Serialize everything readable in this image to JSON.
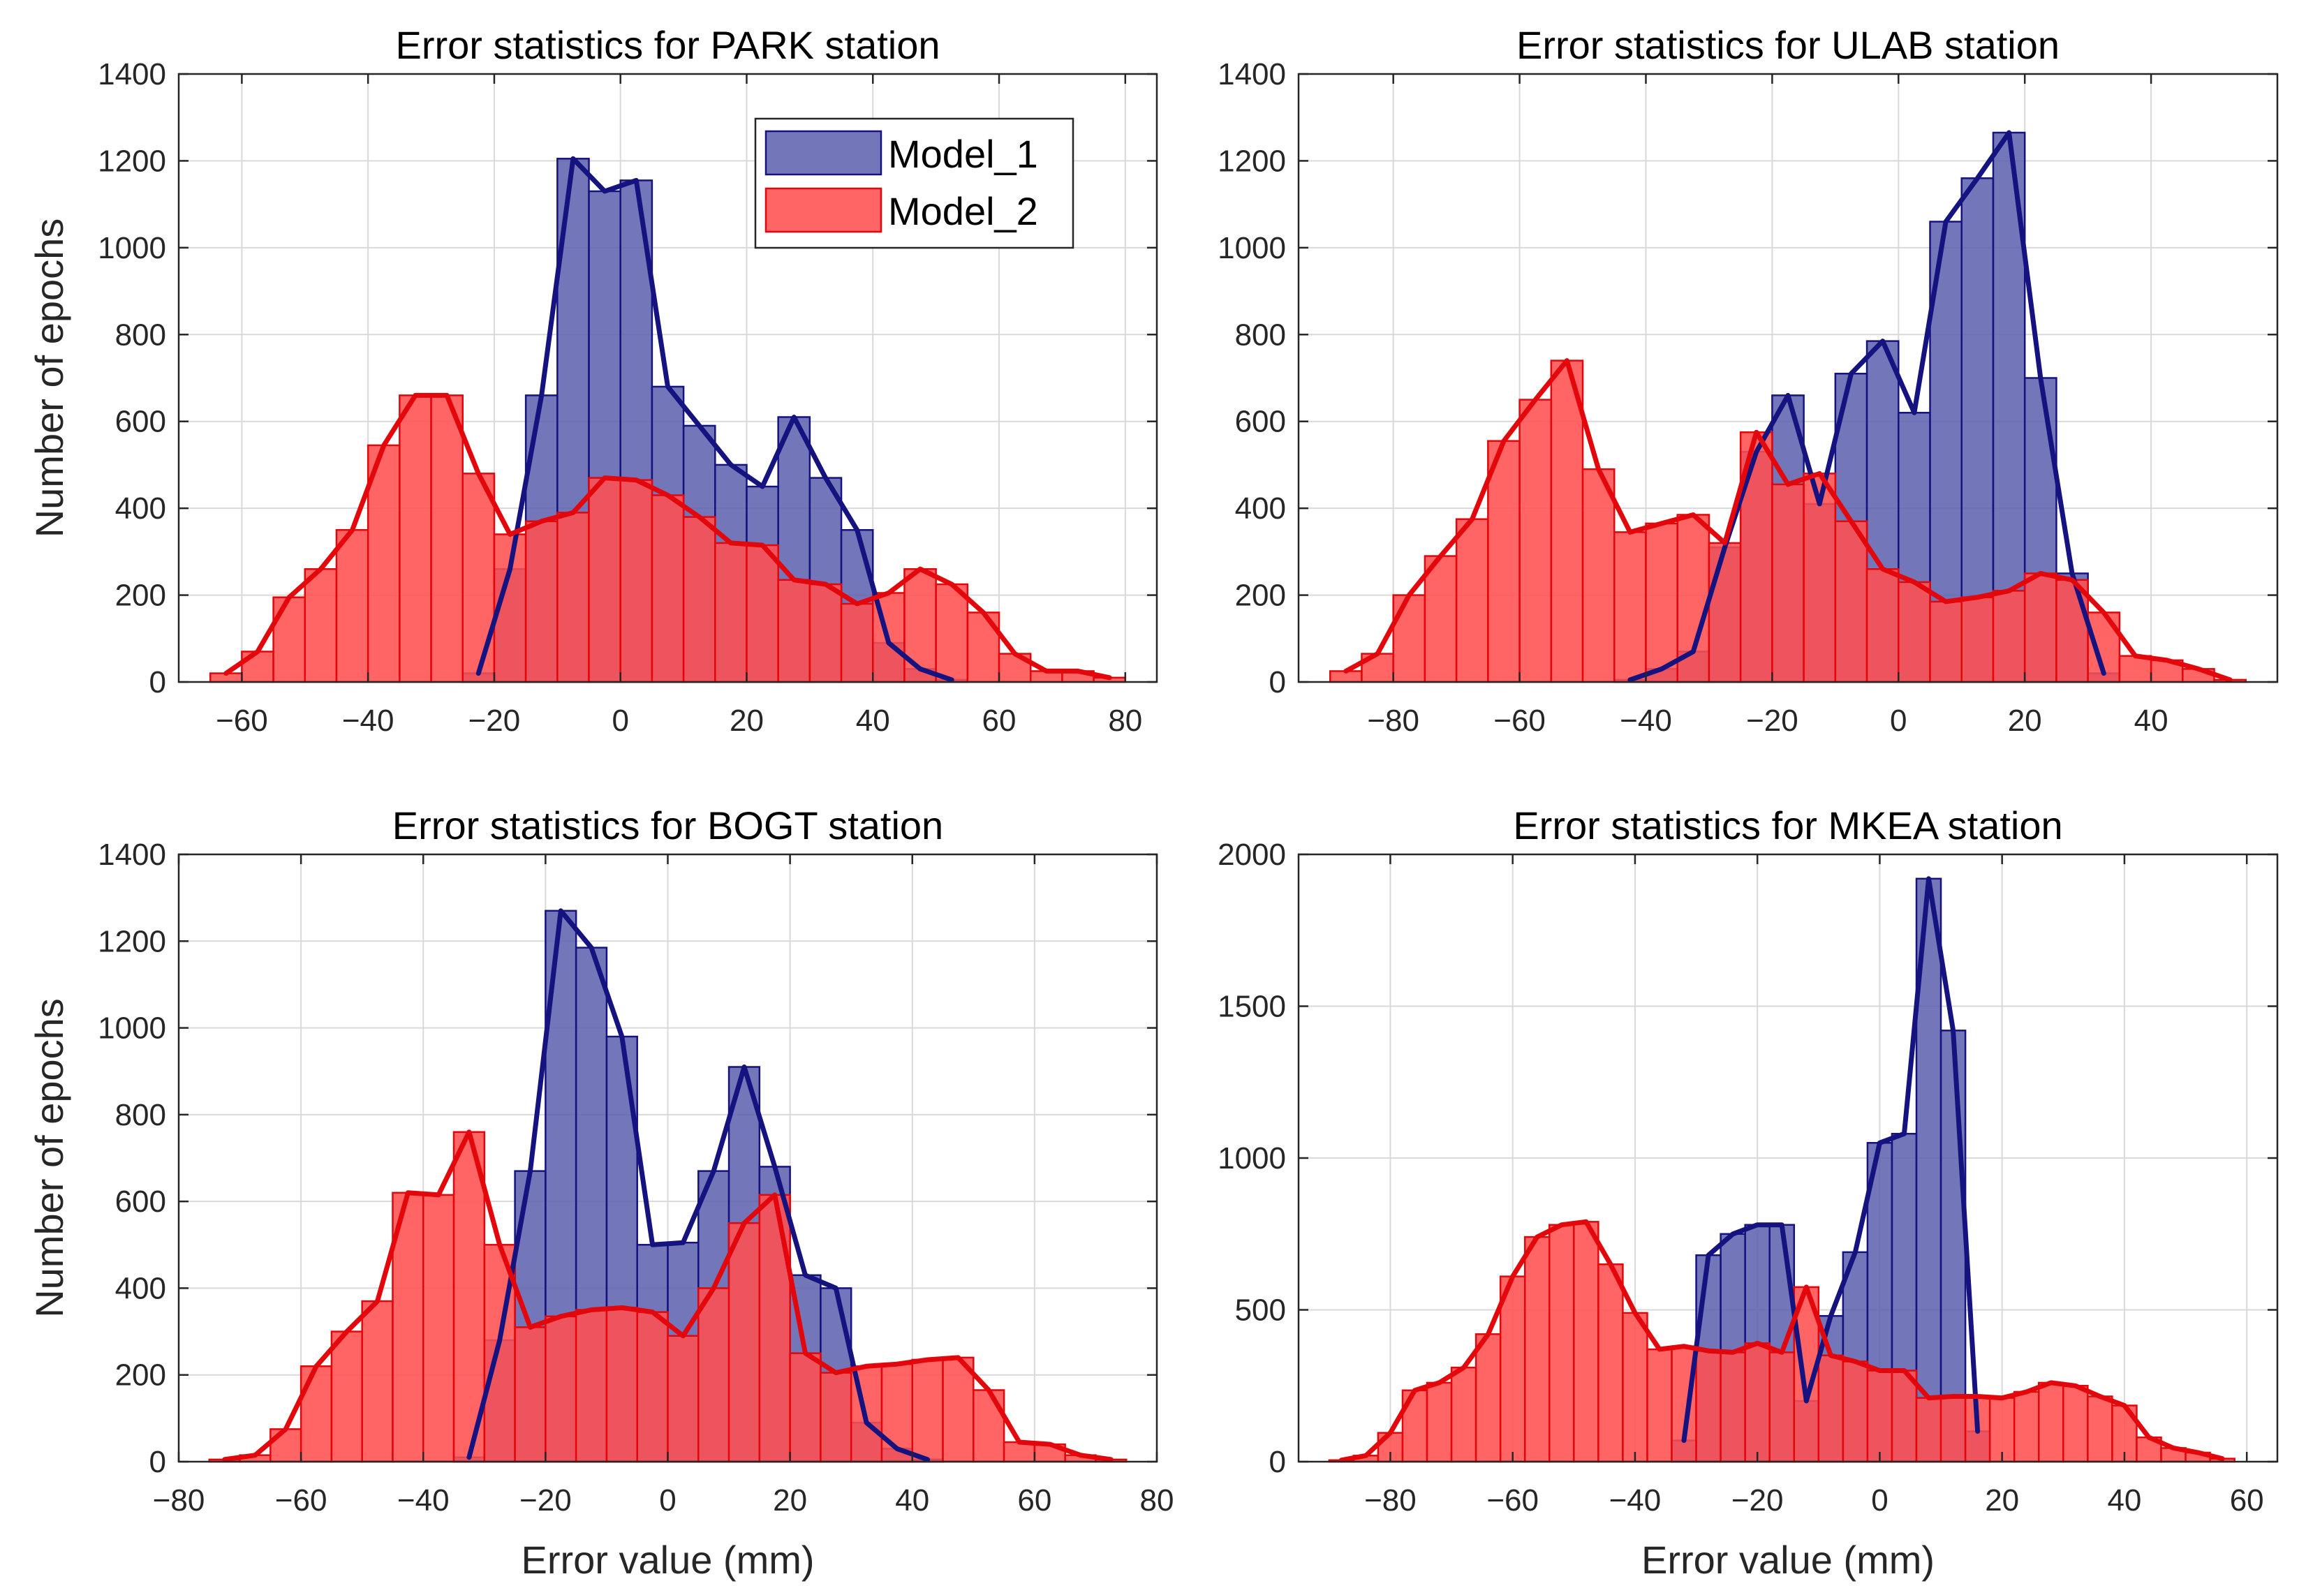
{
  "colors": {
    "model1_fill": "#5a5fad",
    "model1_line": "#15137f",
    "model2_fill": "#ff5050",
    "model2_line": "#e3060a",
    "grid": "#d9d9d9",
    "axis": "#262626"
  },
  "legend": {
    "model1": "Model_1",
    "model2": "Model_2"
  },
  "chart_data": [
    {
      "type": "histogram",
      "title": "Error statistics for PARK station",
      "xlabel": "",
      "ylabel": "Number of epochs",
      "xlim": [
        -70,
        85
      ],
      "ylim": [
        0,
        1400
      ],
      "xticks": [
        -60,
        -40,
        -20,
        0,
        20,
        40,
        60,
        80
      ],
      "yticks": [
        0,
        200,
        400,
        600,
        800,
        1000,
        1200,
        1400
      ],
      "legend_position": "top-right",
      "series": [
        {
          "name": "Model_1",
          "bin_width": 5,
          "bin_centers": [
            -22.5,
            -17.5,
            -12.5,
            -7.5,
            -2.5,
            2.5,
            7.5,
            12.5,
            17.5,
            22.5,
            27.5,
            32.5,
            37.5,
            42.5,
            47.5,
            52.5
          ],
          "values": [
            20,
            260,
            660,
            1205,
            1130,
            1155,
            680,
            590,
            500,
            450,
            610,
            470,
            350,
            90,
            30,
            5
          ]
        },
        {
          "name": "Model_2",
          "bin_width": 5,
          "bin_centers": [
            -62.5,
            -57.5,
            -52.5,
            -47.5,
            -42.5,
            -37.5,
            -32.5,
            -27.5,
            -22.5,
            -17.5,
            -12.5,
            -7.5,
            -2.5,
            2.5,
            7.5,
            12.5,
            17.5,
            22.5,
            27.5,
            32.5,
            37.5,
            42.5,
            47.5,
            52.5,
            57.5,
            62.5,
            67.5,
            72.5,
            77.5
          ],
          "values": [
            20,
            70,
            195,
            260,
            350,
            545,
            660,
            660,
            480,
            340,
            370,
            390,
            470,
            465,
            430,
            380,
            320,
            315,
            235,
            225,
            180,
            205,
            260,
            225,
            160,
            65,
            25,
            25,
            10
          ]
        }
      ]
    },
    {
      "type": "histogram",
      "title": "Error statistics for ULAB station",
      "xlabel": "",
      "ylabel": "",
      "xlim": [
        -95,
        60
      ],
      "ylim": [
        0,
        1400
      ],
      "xticks": [
        -80,
        -60,
        -40,
        -20,
        0,
        20,
        40
      ],
      "yticks": [
        0,
        200,
        400,
        600,
        800,
        1000,
        1200,
        1400
      ],
      "series": [
        {
          "name": "Model_1",
          "bin_width": 5,
          "bin_centers": [
            -42.5,
            -37.5,
            -32.5,
            -27.5,
            -22.5,
            -17.5,
            -12.5,
            -7.5,
            -2.5,
            2.5,
            7.5,
            12.5,
            17.5,
            22.5,
            27.5,
            32.5
          ],
          "values": [
            5,
            30,
            70,
            310,
            530,
            660,
            410,
            710,
            785,
            620,
            1060,
            1160,
            1265,
            700,
            250,
            20
          ]
        },
        {
          "name": "Model_2",
          "bin_width": 5,
          "bin_centers": [
            -87.5,
            -82.5,
            -77.5,
            -72.5,
            -67.5,
            -62.5,
            -57.5,
            -52.5,
            -47.5,
            -42.5,
            -37.5,
            -32.5,
            -27.5,
            -22.5,
            -17.5,
            -12.5,
            -7.5,
            -2.5,
            2.5,
            7.5,
            12.5,
            17.5,
            22.5,
            27.5,
            32.5,
            37.5,
            42.5,
            47.5,
            52.5
          ],
          "values": [
            25,
            65,
            200,
            290,
            375,
            555,
            650,
            740,
            490,
            345,
            365,
            385,
            320,
            575,
            455,
            480,
            370,
            260,
            230,
            185,
            195,
            210,
            250,
            235,
            160,
            60,
            50,
            30,
            5
          ]
        }
      ]
    },
    {
      "type": "histogram",
      "title": "Error statistics for BOGT station",
      "xlabel": "Error value (mm)",
      "ylabel": "Number of epochs",
      "xlim": [
        -80,
        80
      ],
      "ylim": [
        0,
        1400
      ],
      "xticks": [
        -80,
        -60,
        -40,
        -20,
        0,
        20,
        40,
        60,
        80
      ],
      "yticks": [
        0,
        200,
        400,
        600,
        800,
        1000,
        1200,
        1400
      ],
      "series": [
        {
          "name": "Model_1",
          "bin_width": 5,
          "bin_centers": [
            -32.5,
            -27.5,
            -22.5,
            -17.5,
            -12.5,
            -7.5,
            -2.5,
            2.5,
            7.5,
            12.5,
            17.5,
            22.5,
            27.5,
            32.5,
            37.5,
            42.5
          ],
          "values": [
            10,
            280,
            670,
            1270,
            1185,
            980,
            500,
            505,
            670,
            910,
            680,
            430,
            400,
            90,
            30,
            5
          ]
        },
        {
          "name": "Model_2",
          "bin_width": 5,
          "bin_centers": [
            -72.5,
            -67.5,
            -62.5,
            -57.5,
            -52.5,
            -47.5,
            -42.5,
            -37.5,
            -32.5,
            -27.5,
            -22.5,
            -17.5,
            -12.5,
            -7.5,
            -2.5,
            2.5,
            7.5,
            12.5,
            17.5,
            22.5,
            27.5,
            32.5,
            37.5,
            42.5,
            47.5,
            52.5,
            57.5,
            62.5,
            67.5,
            72.5
          ],
          "values": [
            5,
            15,
            75,
            220,
            300,
            370,
            620,
            615,
            760,
            500,
            310,
            335,
            350,
            355,
            345,
            290,
            400,
            550,
            615,
            250,
            205,
            220,
            225,
            235,
            240,
            165,
            45,
            40,
            15,
            5
          ]
        }
      ]
    },
    {
      "type": "histogram",
      "title": "Error statistics for MKEA station",
      "xlabel": "Error value (mm)",
      "ylabel": "",
      "xlim": [
        -95,
        65
      ],
      "ylim": [
        0,
        2000
      ],
      "xticks": [
        -80,
        -60,
        -40,
        -20,
        0,
        20,
        40,
        60
      ],
      "yticks": [
        0,
        500,
        1000,
        1500,
        2000
      ],
      "series": [
        {
          "name": "Model_1",
          "bin_width": 4,
          "bin_centers": [
            -32,
            -28,
            -24,
            -20,
            -16,
            -12,
            -8,
            -4,
            0,
            4,
            8,
            12,
            16
          ],
          "values": [
            70,
            680,
            750,
            780,
            780,
            200,
            480,
            690,
            1050,
            1080,
            1920,
            1420,
            100
          ]
        },
        {
          "name": "Model_2",
          "bin_width": 4,
          "bin_centers": [
            -88,
            -84,
            -80,
            -76,
            -72,
            -68,
            -64,
            -60,
            -56,
            -52,
            -48,
            -44,
            -40,
            -36,
            -32,
            -28,
            -24,
            -20,
            -16,
            -12,
            -8,
            -4,
            0,
            4,
            8,
            12,
            16,
            20,
            24,
            28,
            32,
            36,
            40,
            44,
            48,
            52,
            56
          ],
          "values": [
            5,
            20,
            95,
            235,
            260,
            310,
            420,
            610,
            740,
            780,
            790,
            650,
            490,
            370,
            380,
            365,
            360,
            390,
            360,
            575,
            350,
            330,
            300,
            300,
            210,
            215,
            215,
            210,
            230,
            260,
            250,
            215,
            185,
            80,
            45,
            30,
            10
          ]
        }
      ]
    }
  ]
}
